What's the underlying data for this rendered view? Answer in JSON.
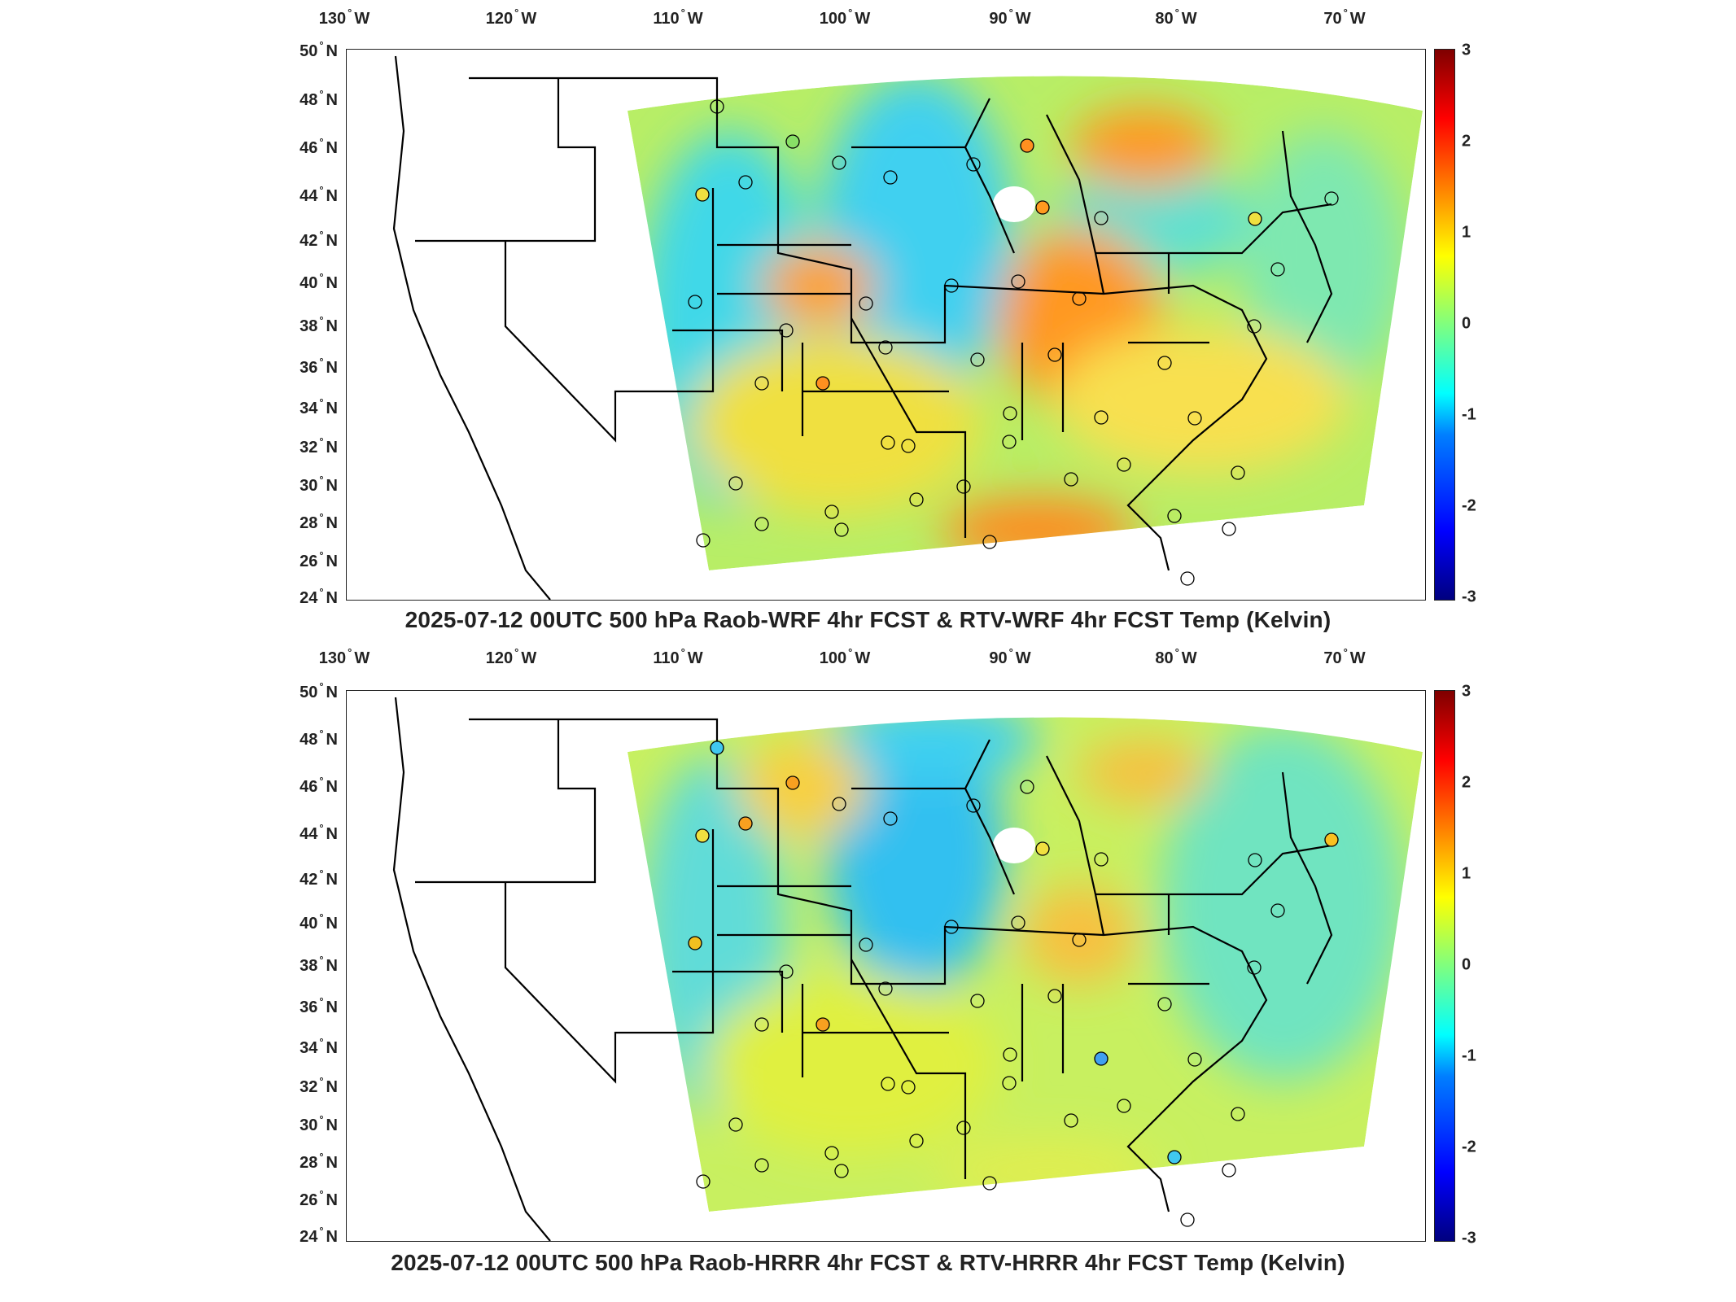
{
  "longitude_ticks": [
    {
      "deg": "130",
      "hem": "W"
    },
    {
      "deg": "120",
      "hem": "W"
    },
    {
      "deg": "110",
      "hem": "W"
    },
    {
      "deg": "100",
      "hem": "W"
    },
    {
      "deg": "90",
      "hem": "W"
    },
    {
      "deg": "80",
      "hem": "W"
    },
    {
      "deg": "70",
      "hem": "W"
    }
  ],
  "latitude_ticks": [
    {
      "deg": "50",
      "hem": "N"
    },
    {
      "deg": "48",
      "hem": "N"
    },
    {
      "deg": "46",
      "hem": "N"
    },
    {
      "deg": "44",
      "hem": "N"
    },
    {
      "deg": "42",
      "hem": "N"
    },
    {
      "deg": "40",
      "hem": "N"
    },
    {
      "deg": "38",
      "hem": "N"
    },
    {
      "deg": "36",
      "hem": "N"
    },
    {
      "deg": "34",
      "hem": "N"
    },
    {
      "deg": "32",
      "hem": "N"
    },
    {
      "deg": "30",
      "hem": "N"
    },
    {
      "deg": "28",
      "hem": "N"
    },
    {
      "deg": "26",
      "hem": "N"
    },
    {
      "deg": "24",
      "hem": "N"
    }
  ],
  "colorbar": {
    "ticks": [
      "3",
      "2",
      "1",
      "0",
      "-1",
      "-2",
      "-3"
    ],
    "colormap": "jet",
    "min": -3,
    "max": 3
  },
  "colors": {
    "frame": "#222222",
    "boundary": "#000000",
    "background": "#ffffff"
  },
  "panels": [
    {
      "title": "2025-07-12 00UTC 500 hPa Raob-WRF 4hr FCST & RTV-WRF 4hr FCST Temp (Kelvin)"
    },
    {
      "title": "2025-07-12 00UTC 500 hPa Raob-HRRR 4hr FCST & RTV-HRRR 4hr FCST Temp (Kelvin)"
    }
  ]
}
